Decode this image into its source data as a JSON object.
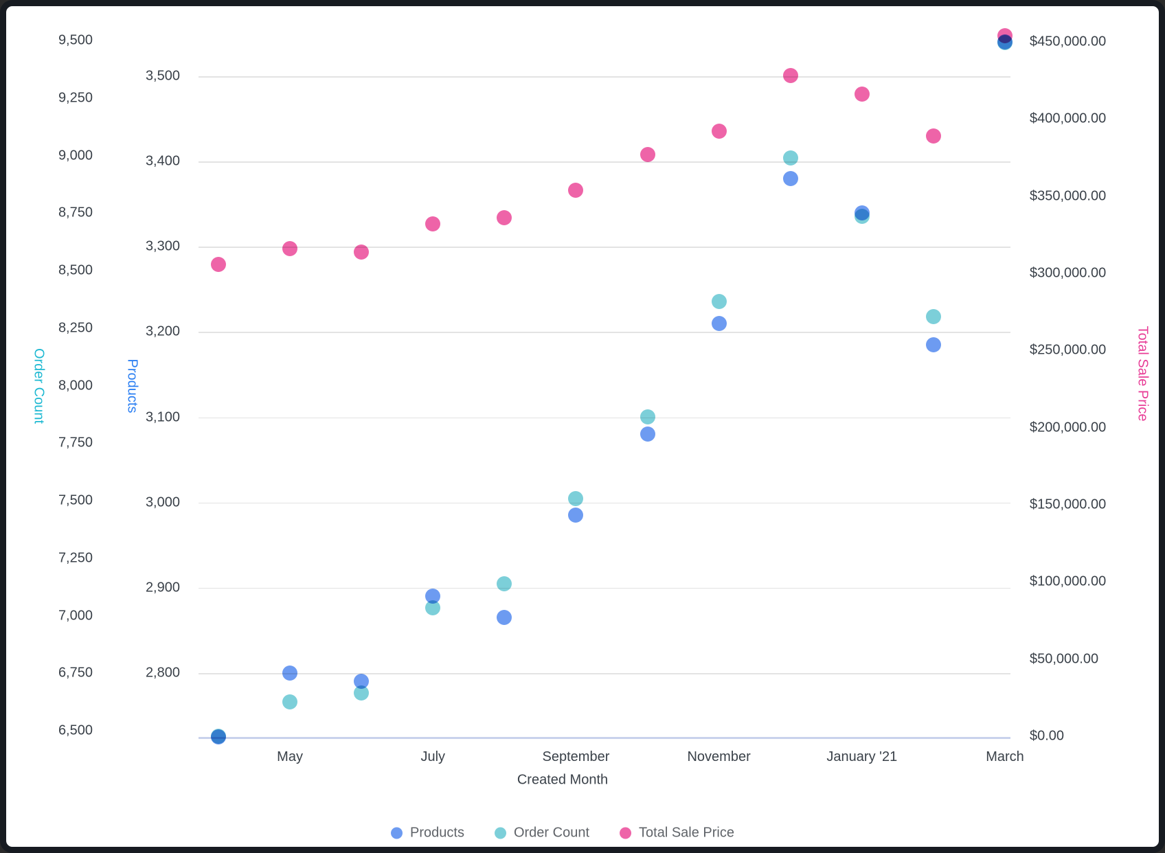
{
  "chart_data": {
    "type": "scatter",
    "x": {
      "axis_title": "Created Month",
      "categories": [
        "April",
        "May",
        "June",
        "July",
        "August",
        "September",
        "October",
        "November",
        "December",
        "January",
        "February",
        "March"
      ],
      "visible_ticks": [
        {
          "month_index": 1,
          "label": "May"
        },
        {
          "month_index": 3,
          "label": "July"
        },
        {
          "month_index": 5,
          "label": "September"
        },
        {
          "month_index": 7,
          "label": "November"
        },
        {
          "month_index": 9,
          "label": "January '21"
        },
        {
          "month_index": 11,
          "label": "March"
        }
      ]
    },
    "series": [
      {
        "name": "Products",
        "axis": "products",
        "color": "#6d9bf1",
        "z": 2,
        "values": [
          2725,
          2800,
          2790,
          2890,
          2865,
          2985,
          3080,
          3210,
          3380,
          3340,
          3185,
          3540
        ]
      },
      {
        "name": "Order Count",
        "axis": "order_count",
        "color": "#7ccfd9",
        "z": 1,
        "values": [
          6475,
          6625,
          6665,
          7035,
          7140,
          7510,
          7865,
          8365,
          8990,
          8735,
          8300,
          9490
        ]
      },
      {
        "name": "Total Sale Price",
        "axis": "total_sale_price",
        "color": "#ee64a8",
        "z": 3,
        "values": [
          306000,
          316000,
          314000,
          332000,
          336000,
          354000,
          377000,
          392000,
          428000,
          416000,
          389000,
          454000
        ]
      }
    ],
    "axes": {
      "order_count": {
        "title": "Order Count",
        "title_color": "#1fb9d2",
        "side": "outer-left",
        "range": [
          6500,
          9500
        ],
        "tick_values": [
          6500,
          6750,
          7000,
          7250,
          7500,
          7750,
          8000,
          8250,
          8500,
          8750,
          9000,
          9250,
          9500
        ],
        "tick_labels": [
          "6,500",
          "6,750",
          "7,000",
          "7,250",
          "7,500",
          "7,750",
          "8,000",
          "8,250",
          "8,500",
          "8,750",
          "9,000",
          "9,250",
          "9,500"
        ],
        "gridlines": false
      },
      "products": {
        "title": "Products",
        "title_color": "#2b7ff2",
        "side": "inner-left",
        "range": [
          2800,
          3500
        ],
        "tick_values": [
          2800,
          2900,
          3000,
          3100,
          3200,
          3300,
          3400,
          3500
        ],
        "tick_labels": [
          "2,800",
          "2,900",
          "3,000",
          "3,100",
          "3,200",
          "3,300",
          "3,400",
          "3,500"
        ],
        "gridlines": true
      },
      "total_sale_price": {
        "title": "Total Sale Price",
        "title_color": "#e83e97",
        "side": "right",
        "range": [
          0,
          450000
        ],
        "tick_values": [
          0,
          50000,
          100000,
          150000,
          200000,
          250000,
          300000,
          350000,
          400000,
          450000
        ],
        "tick_labels": [
          "$0.00",
          "$50,000.00",
          "$100,000.00",
          "$150,000.00",
          "$200,000.00",
          "$250,000.00",
          "$300,000.00",
          "$350,000.00",
          "$400,000.00",
          "$450,000.00"
        ],
        "gridlines": false
      }
    },
    "legend": {
      "position": "bottom",
      "items": [
        "Products",
        "Order Count",
        "Total Sale Price"
      ]
    }
  },
  "colors": {
    "background": "#ffffff",
    "border": "#171b21",
    "grid": "#e3e3e3",
    "baseline": "#c9d2ec",
    "tick_text": "#3a4149",
    "legend_text": "#5f6368"
  }
}
